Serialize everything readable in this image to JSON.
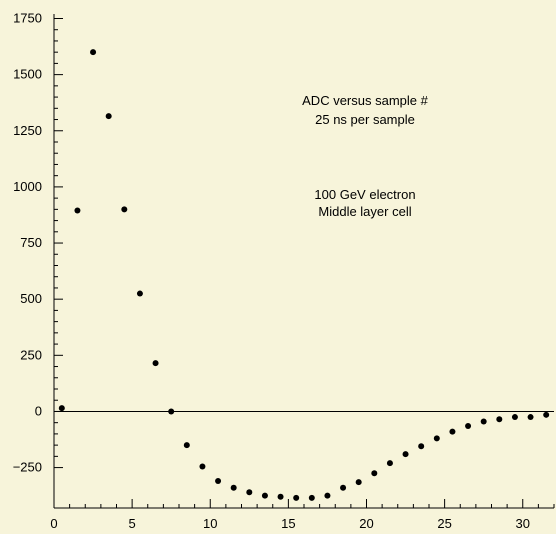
{
  "chart_data": {
    "type": "scatter",
    "title": "",
    "xlabel": "",
    "ylabel": "",
    "xlim": [
      0,
      32
    ],
    "ylim": [
      -430,
      1770
    ],
    "x_ticks": [
      0,
      5,
      10,
      15,
      20,
      25,
      30
    ],
    "y_ticks": [
      -250,
      0,
      250,
      500,
      750,
      1000,
      1250,
      1500,
      1750
    ],
    "y_tick_labels": [
      "−250",
      "0",
      "250",
      "500",
      "750",
      "1000",
      "1250",
      "1500",
      "1750"
    ],
    "zero_line": true,
    "annotations": [
      "ADC versus sample #",
      "25 ns per sample",
      "100 GeV electron",
      "Middle layer cell"
    ],
    "series": [
      {
        "marker_color": "#000000",
        "x": [
          0.5,
          1.5,
          2.5,
          3.5,
          4.5,
          5.5,
          6.5,
          7.5,
          8.5,
          9.5,
          10.5,
          11.5,
          12.5,
          13.5,
          14.5,
          15.5,
          16.5,
          17.5,
          18.5,
          19.5,
          20.5,
          21.5,
          22.5,
          23.5,
          24.5,
          25.5,
          26.5,
          27.5,
          28.5,
          29.5,
          30.5,
          31.5
        ],
        "y": [
          15,
          895,
          1600,
          1315,
          900,
          525,
          215,
          0,
          -150,
          -245,
          -310,
          -340,
          -360,
          -375,
          -380,
          -385,
          -385,
          -375,
          -340,
          -315,
          -275,
          -230,
          -190,
          -155,
          -120,
          -90,
          -65,
          -45,
          -35,
          -25,
          -25,
          -15
        ]
      }
    ]
  }
}
